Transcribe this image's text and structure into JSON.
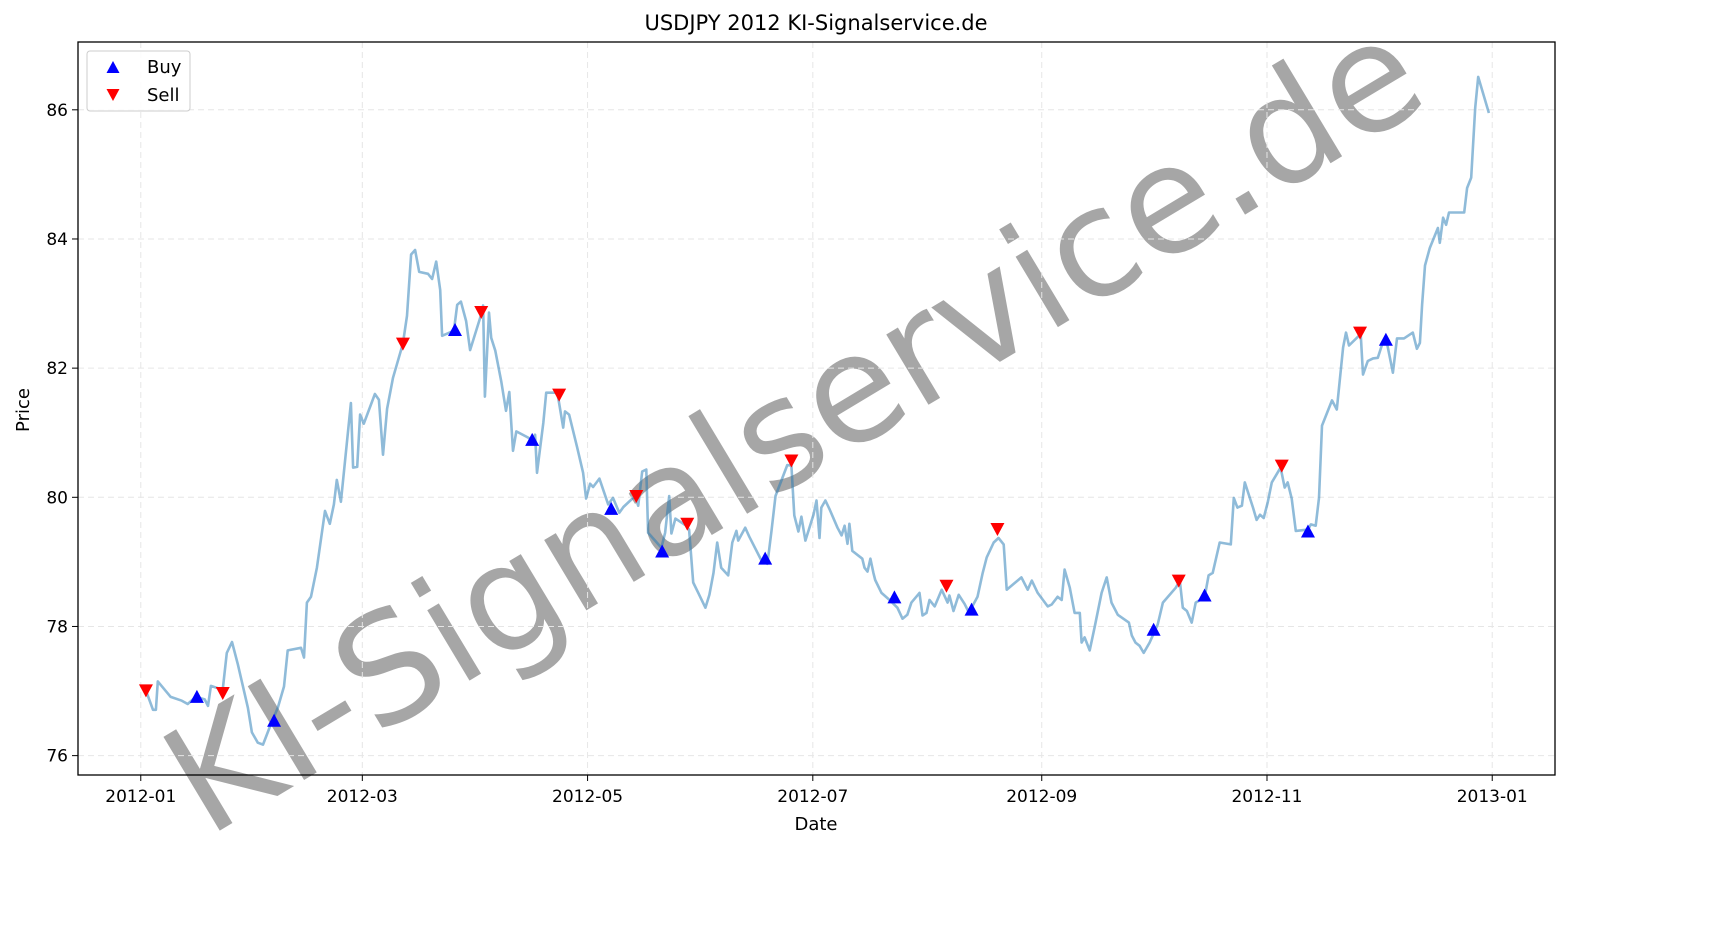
{
  "chart_data": {
    "type": "line",
    "title": "USDJPY 2012 KI-Signalservice.de",
    "xlabel": "Date",
    "ylabel": "Price",
    "watermark": "KI-Signalservice.de",
    "x_unit": "days since 2012-01-01",
    "xlim": [
      -17,
      383
    ],
    "ylim": [
      75.7,
      87.05
    ],
    "grid": true,
    "legend_placement": "top-left",
    "x_ticks": [
      {
        "value": 0,
        "label": "2012-01"
      },
      {
        "value": 60,
        "label": "2012-03"
      },
      {
        "value": 121,
        "label": "2012-05"
      },
      {
        "value": 182,
        "label": "2012-07"
      },
      {
        "value": 244,
        "label": "2012-09"
      },
      {
        "value": 305,
        "label": "2012-11"
      },
      {
        "value": 366,
        "label": "2013-01"
      }
    ],
    "y_ticks": [
      {
        "value": 76,
        "label": "76"
      },
      {
        "value": 78,
        "label": "78"
      },
      {
        "value": 80,
        "label": "80"
      },
      {
        "value": 82,
        "label": "82"
      },
      {
        "value": 84,
        "label": "84"
      },
      {
        "value": 86,
        "label": "86"
      }
    ],
    "colors": {
      "line": "#1f77b4",
      "buy": "#0000ff",
      "sell": "#ff0000",
      "watermark": "#d9d9d9"
    },
    "series": [
      {
        "name": "USDJPY",
        "points": [
          [
            1.4,
            77.01
          ],
          [
            3.3,
            76.71
          ],
          [
            4.1,
            76.71
          ],
          [
            4.6,
            77.15
          ],
          [
            8.1,
            76.91
          ],
          [
            11.1,
            76.85
          ],
          [
            12.7,
            76.8
          ],
          [
            14.9,
            76.91
          ],
          [
            17.3,
            76.87
          ],
          [
            18.2,
            76.77
          ],
          [
            19.0,
            77.08
          ],
          [
            22.2,
            77.02
          ],
          [
            23.3,
            77.59
          ],
          [
            24.7,
            77.76
          ],
          [
            26.3,
            77.41
          ],
          [
            29.0,
            76.74
          ],
          [
            30.1,
            76.36
          ],
          [
            31.7,
            76.2
          ],
          [
            33.1,
            76.17
          ],
          [
            35.2,
            76.48
          ],
          [
            37.1,
            76.74
          ],
          [
            38.8,
            77.07
          ],
          [
            39.8,
            77.63
          ],
          [
            43.4,
            77.67
          ],
          [
            44.2,
            77.52
          ],
          [
            45.0,
            78.37
          ],
          [
            46.1,
            78.46
          ],
          [
            47.7,
            78.91
          ],
          [
            49.9,
            79.79
          ],
          [
            51.2,
            79.59
          ],
          [
            52.3,
            79.89
          ],
          [
            53.1,
            80.27
          ],
          [
            54.2,
            79.93
          ],
          [
            56.9,
            81.46
          ],
          [
            57.5,
            80.46
          ],
          [
            58.6,
            80.47
          ],
          [
            59.4,
            81.28
          ],
          [
            60.4,
            81.14
          ],
          [
            63.4,
            81.6
          ],
          [
            64.5,
            81.51
          ],
          [
            65.6,
            80.66
          ],
          [
            66.7,
            81.37
          ],
          [
            68.3,
            81.85
          ],
          [
            71.0,
            82.38
          ],
          [
            72.1,
            82.81
          ],
          [
            73.2,
            83.76
          ],
          [
            74.3,
            83.83
          ],
          [
            75.4,
            83.49
          ],
          [
            77.8,
            83.46
          ],
          [
            78.9,
            83.38
          ],
          [
            80.0,
            83.65
          ],
          [
            81.1,
            83.21
          ],
          [
            81.6,
            82.5
          ],
          [
            84.8,
            82.58
          ],
          [
            85.7,
            82.98
          ],
          [
            86.7,
            83.03
          ],
          [
            88.1,
            82.73
          ],
          [
            89.2,
            82.28
          ],
          [
            92.2,
            82.83
          ],
          [
            92.7,
            82.97
          ],
          [
            93.2,
            81.56
          ],
          [
            94.3,
            82.86
          ],
          [
            94.9,
            82.47
          ],
          [
            96.0,
            82.27
          ],
          [
            97.6,
            81.8
          ],
          [
            98.9,
            81.34
          ],
          [
            99.8,
            81.63
          ],
          [
            100.8,
            80.72
          ],
          [
            101.7,
            81.02
          ],
          [
            104.4,
            80.94
          ],
          [
            106.0,
            80.89
          ],
          [
            106.8,
            80.97
          ],
          [
            107.3,
            80.38
          ],
          [
            109.0,
            81.15
          ],
          [
            109.8,
            81.62
          ],
          [
            112.8,
            81.62
          ],
          [
            113.3,
            81.46
          ],
          [
            114.4,
            81.08
          ],
          [
            114.9,
            81.33
          ],
          [
            116.0,
            81.28
          ],
          [
            118.2,
            80.77
          ],
          [
            119.8,
            80.38
          ],
          [
            120.6,
            79.98
          ],
          [
            121.7,
            80.21
          ],
          [
            122.5,
            80.16
          ],
          [
            124.2,
            80.29
          ],
          [
            126.6,
            79.89
          ],
          [
            127.9,
            79.99
          ],
          [
            129.6,
            79.76
          ],
          [
            130.7,
            79.85
          ],
          [
            133.9,
            80.02
          ],
          [
            134.7,
            79.87
          ],
          [
            135.8,
            80.4
          ],
          [
            136.9,
            80.43
          ],
          [
            137.4,
            79.45
          ],
          [
            141.0,
            79.22
          ],
          [
            142.0,
            79.45
          ],
          [
            143.1,
            80.02
          ],
          [
            143.7,
            79.44
          ],
          [
            144.8,
            79.67
          ],
          [
            147.7,
            79.56
          ],
          [
            148.5,
            79.5
          ],
          [
            149.6,
            78.68
          ],
          [
            151.0,
            78.52
          ],
          [
            152.9,
            78.29
          ],
          [
            154.0,
            78.49
          ],
          [
            155.1,
            78.83
          ],
          [
            156.1,
            79.3
          ],
          [
            157.2,
            78.91
          ],
          [
            159.1,
            78.79
          ],
          [
            160.2,
            79.3
          ],
          [
            161.3,
            79.48
          ],
          [
            161.8,
            79.33
          ],
          [
            163.7,
            79.53
          ],
          [
            164.8,
            79.39
          ],
          [
            168.1,
            79.02
          ],
          [
            169.7,
            78.97
          ],
          [
            170.8,
            79.48
          ],
          [
            171.9,
            80.02
          ],
          [
            175.1,
            80.5
          ],
          [
            176.2,
            80.49
          ],
          [
            177.0,
            79.72
          ],
          [
            178.1,
            79.47
          ],
          [
            178.9,
            79.7
          ],
          [
            180.0,
            79.33
          ],
          [
            182.2,
            79.73
          ],
          [
            183.0,
            79.95
          ],
          [
            183.8,
            79.37
          ],
          [
            184.3,
            79.84
          ],
          [
            185.4,
            79.95
          ],
          [
            186.5,
            79.82
          ],
          [
            188.7,
            79.53
          ],
          [
            189.8,
            79.41
          ],
          [
            190.6,
            79.56
          ],
          [
            191.4,
            79.28
          ],
          [
            191.9,
            79.59
          ],
          [
            192.7,
            79.17
          ],
          [
            195.4,
            79.05
          ],
          [
            196.0,
            78.91
          ],
          [
            196.8,
            78.85
          ],
          [
            197.6,
            79.05
          ],
          [
            198.4,
            78.83
          ],
          [
            198.9,
            78.72
          ],
          [
            200.6,
            78.52
          ],
          [
            202.8,
            78.41
          ],
          [
            204.9,
            78.29
          ],
          [
            206.3,
            78.12
          ],
          [
            207.6,
            78.18
          ],
          [
            208.7,
            78.37
          ],
          [
            210.9,
            78.52
          ],
          [
            211.7,
            78.17
          ],
          [
            212.8,
            78.21
          ],
          [
            213.6,
            78.41
          ],
          [
            215.0,
            78.31
          ],
          [
            216.9,
            78.57
          ],
          [
            218.5,
            78.37
          ],
          [
            219.0,
            78.48
          ],
          [
            220.1,
            78.24
          ],
          [
            221.5,
            78.49
          ],
          [
            223.1,
            78.35
          ],
          [
            224.4,
            78.2
          ],
          [
            225.0,
            78.29
          ],
          [
            226.6,
            78.46
          ],
          [
            228.0,
            78.83
          ],
          [
            229.1,
            79.07
          ],
          [
            231.0,
            79.3
          ],
          [
            232.3,
            79.37
          ],
          [
            233.7,
            79.27
          ],
          [
            234.5,
            78.57
          ],
          [
            238.5,
            78.76
          ],
          [
            240.2,
            78.57
          ],
          [
            241.3,
            78.71
          ],
          [
            242.9,
            78.52
          ],
          [
            245.6,
            78.31
          ],
          [
            246.7,
            78.34
          ],
          [
            248.3,
            78.46
          ],
          [
            249.4,
            78.41
          ],
          [
            250.2,
            78.88
          ],
          [
            251.6,
            78.6
          ],
          [
            252.9,
            78.21
          ],
          [
            254.3,
            78.21
          ],
          [
            254.8,
            77.75
          ],
          [
            255.6,
            77.83
          ],
          [
            257.0,
            77.63
          ],
          [
            258.3,
            77.98
          ],
          [
            260.2,
            78.52
          ],
          [
            261.6,
            78.76
          ],
          [
            262.9,
            78.37
          ],
          [
            264.6,
            78.18
          ],
          [
            267.6,
            78.06
          ],
          [
            268.4,
            77.86
          ],
          [
            269.4,
            77.75
          ],
          [
            270.5,
            77.7
          ],
          [
            271.6,
            77.59
          ],
          [
            273.2,
            77.75
          ],
          [
            275.4,
            78.03
          ],
          [
            276.8,
            78.37
          ],
          [
            280.3,
            78.6
          ],
          [
            281.4,
            78.71
          ],
          [
            282.2,
            78.29
          ],
          [
            283.3,
            78.24
          ],
          [
            284.6,
            78.06
          ],
          [
            285.7,
            78.37
          ],
          [
            288.1,
            78.45
          ],
          [
            289.2,
            78.79
          ],
          [
            290.3,
            78.83
          ],
          [
            292.2,
            79.3
          ],
          [
            295.2,
            79.27
          ],
          [
            296.0,
            79.99
          ],
          [
            297.0,
            79.84
          ],
          [
            298.2,
            79.87
          ],
          [
            299.0,
            80.23
          ],
          [
            301.2,
            79.84
          ],
          [
            302.2,
            79.65
          ],
          [
            303.1,
            79.73
          ],
          [
            304.1,
            79.68
          ],
          [
            305.2,
            79.92
          ],
          [
            306.3,
            80.23
          ],
          [
            308.7,
            80.46
          ],
          [
            309.8,
            80.15
          ],
          [
            310.6,
            80.23
          ],
          [
            311.7,
            79.98
          ],
          [
            312.8,
            79.48
          ],
          [
            316.1,
            79.5
          ],
          [
            316.9,
            79.58
          ],
          [
            318.2,
            79.56
          ],
          [
            319.1,
            79.99
          ],
          [
            319.9,
            81.11
          ],
          [
            322.6,
            81.5
          ],
          [
            323.9,
            81.36
          ],
          [
            325.6,
            82.32
          ],
          [
            326.4,
            82.55
          ],
          [
            327.2,
            82.35
          ],
          [
            329.9,
            82.5
          ],
          [
            330.4,
            82.5
          ],
          [
            331.0,
            81.9
          ],
          [
            332.3,
            82.11
          ],
          [
            333.7,
            82.15
          ],
          [
            335.0,
            82.16
          ],
          [
            336.1,
            82.35
          ],
          [
            337.2,
            82.47
          ],
          [
            339.1,
            81.93
          ],
          [
            340.2,
            82.46
          ],
          [
            342.1,
            82.46
          ],
          [
            344.5,
            82.55
          ],
          [
            345.6,
            82.3
          ],
          [
            346.4,
            82.39
          ],
          [
            347.0,
            82.98
          ],
          [
            347.8,
            83.59
          ],
          [
            349.1,
            83.86
          ],
          [
            351.3,
            84.17
          ],
          [
            351.8,
            83.94
          ],
          [
            352.7,
            84.33
          ],
          [
            353.5,
            84.22
          ],
          [
            354.3,
            84.41
          ],
          [
            358.4,
            84.41
          ],
          [
            359.2,
            84.79
          ],
          [
            360.3,
            84.95
          ],
          [
            361.4,
            86.03
          ],
          [
            362.2,
            86.51
          ],
          [
            365.1,
            85.95
          ]
        ]
      },
      {
        "name": "Buy",
        "marker": "triangle-up",
        "points": [
          [
            15.2,
            76.91
          ],
          [
            36.1,
            76.54
          ],
          [
            85.1,
            82.59
          ],
          [
            106.0,
            80.89
          ],
          [
            127.4,
            79.82
          ],
          [
            141.2,
            79.16
          ],
          [
            169.1,
            79.05
          ],
          [
            204.1,
            78.45
          ],
          [
            225.0,
            78.26
          ],
          [
            274.3,
            77.95
          ],
          [
            288.1,
            78.48
          ],
          [
            316.1,
            79.47
          ],
          [
            337.2,
            82.44
          ]
        ]
      },
      {
        "name": "Sell",
        "marker": "triangle-down",
        "points": [
          [
            1.4,
            77.01
          ],
          [
            22.2,
            76.97
          ],
          [
            71.0,
            82.38
          ],
          [
            92.2,
            82.87
          ],
          [
            113.3,
            81.59
          ],
          [
            134.2,
            80.02
          ],
          [
            148.0,
            79.59
          ],
          [
            176.2,
            80.57
          ],
          [
            218.2,
            78.63
          ],
          [
            232.0,
            79.51
          ],
          [
            281.1,
            78.71
          ],
          [
            309.0,
            80.49
          ],
          [
            330.2,
            82.55
          ]
        ]
      }
    ]
  }
}
